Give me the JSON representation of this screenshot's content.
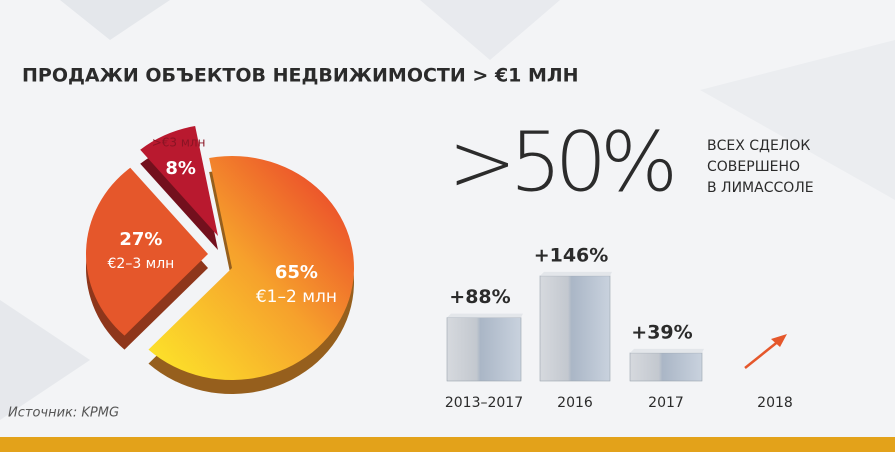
{
  "title": "ПРОДАЖИ ОБЪЕКТОВ НЕДВИЖИМОСТИ > €1 МЛН",
  "source": "Источник: KPMG",
  "headline": ">50%",
  "headline_note": [
    "ВСЕХ СДЕЛОК",
    "СОВЕРШЕНО",
    "В ЛИМАССОЛЕ"
  ],
  "chart_data": [
    {
      "type": "pie",
      "categories": [
        "€1–2 млн",
        "€2–3 млн",
        ">€3 млн"
      ],
      "values": [
        65,
        27,
        8
      ],
      "value_labels": [
        "65%",
        "27%",
        "8%"
      ],
      "colors": [
        "#f29a2e",
        "#e5572b",
        "#b9192f"
      ]
    },
    {
      "type": "bar",
      "categories": [
        "2013–2017",
        "2016",
        "2017",
        "2018"
      ],
      "values": [
        88,
        146,
        39,
        null
      ],
      "value_labels": [
        "+88%",
        "+146%",
        "+39%",
        null
      ],
      "color": "#b4bfcd"
    }
  ]
}
